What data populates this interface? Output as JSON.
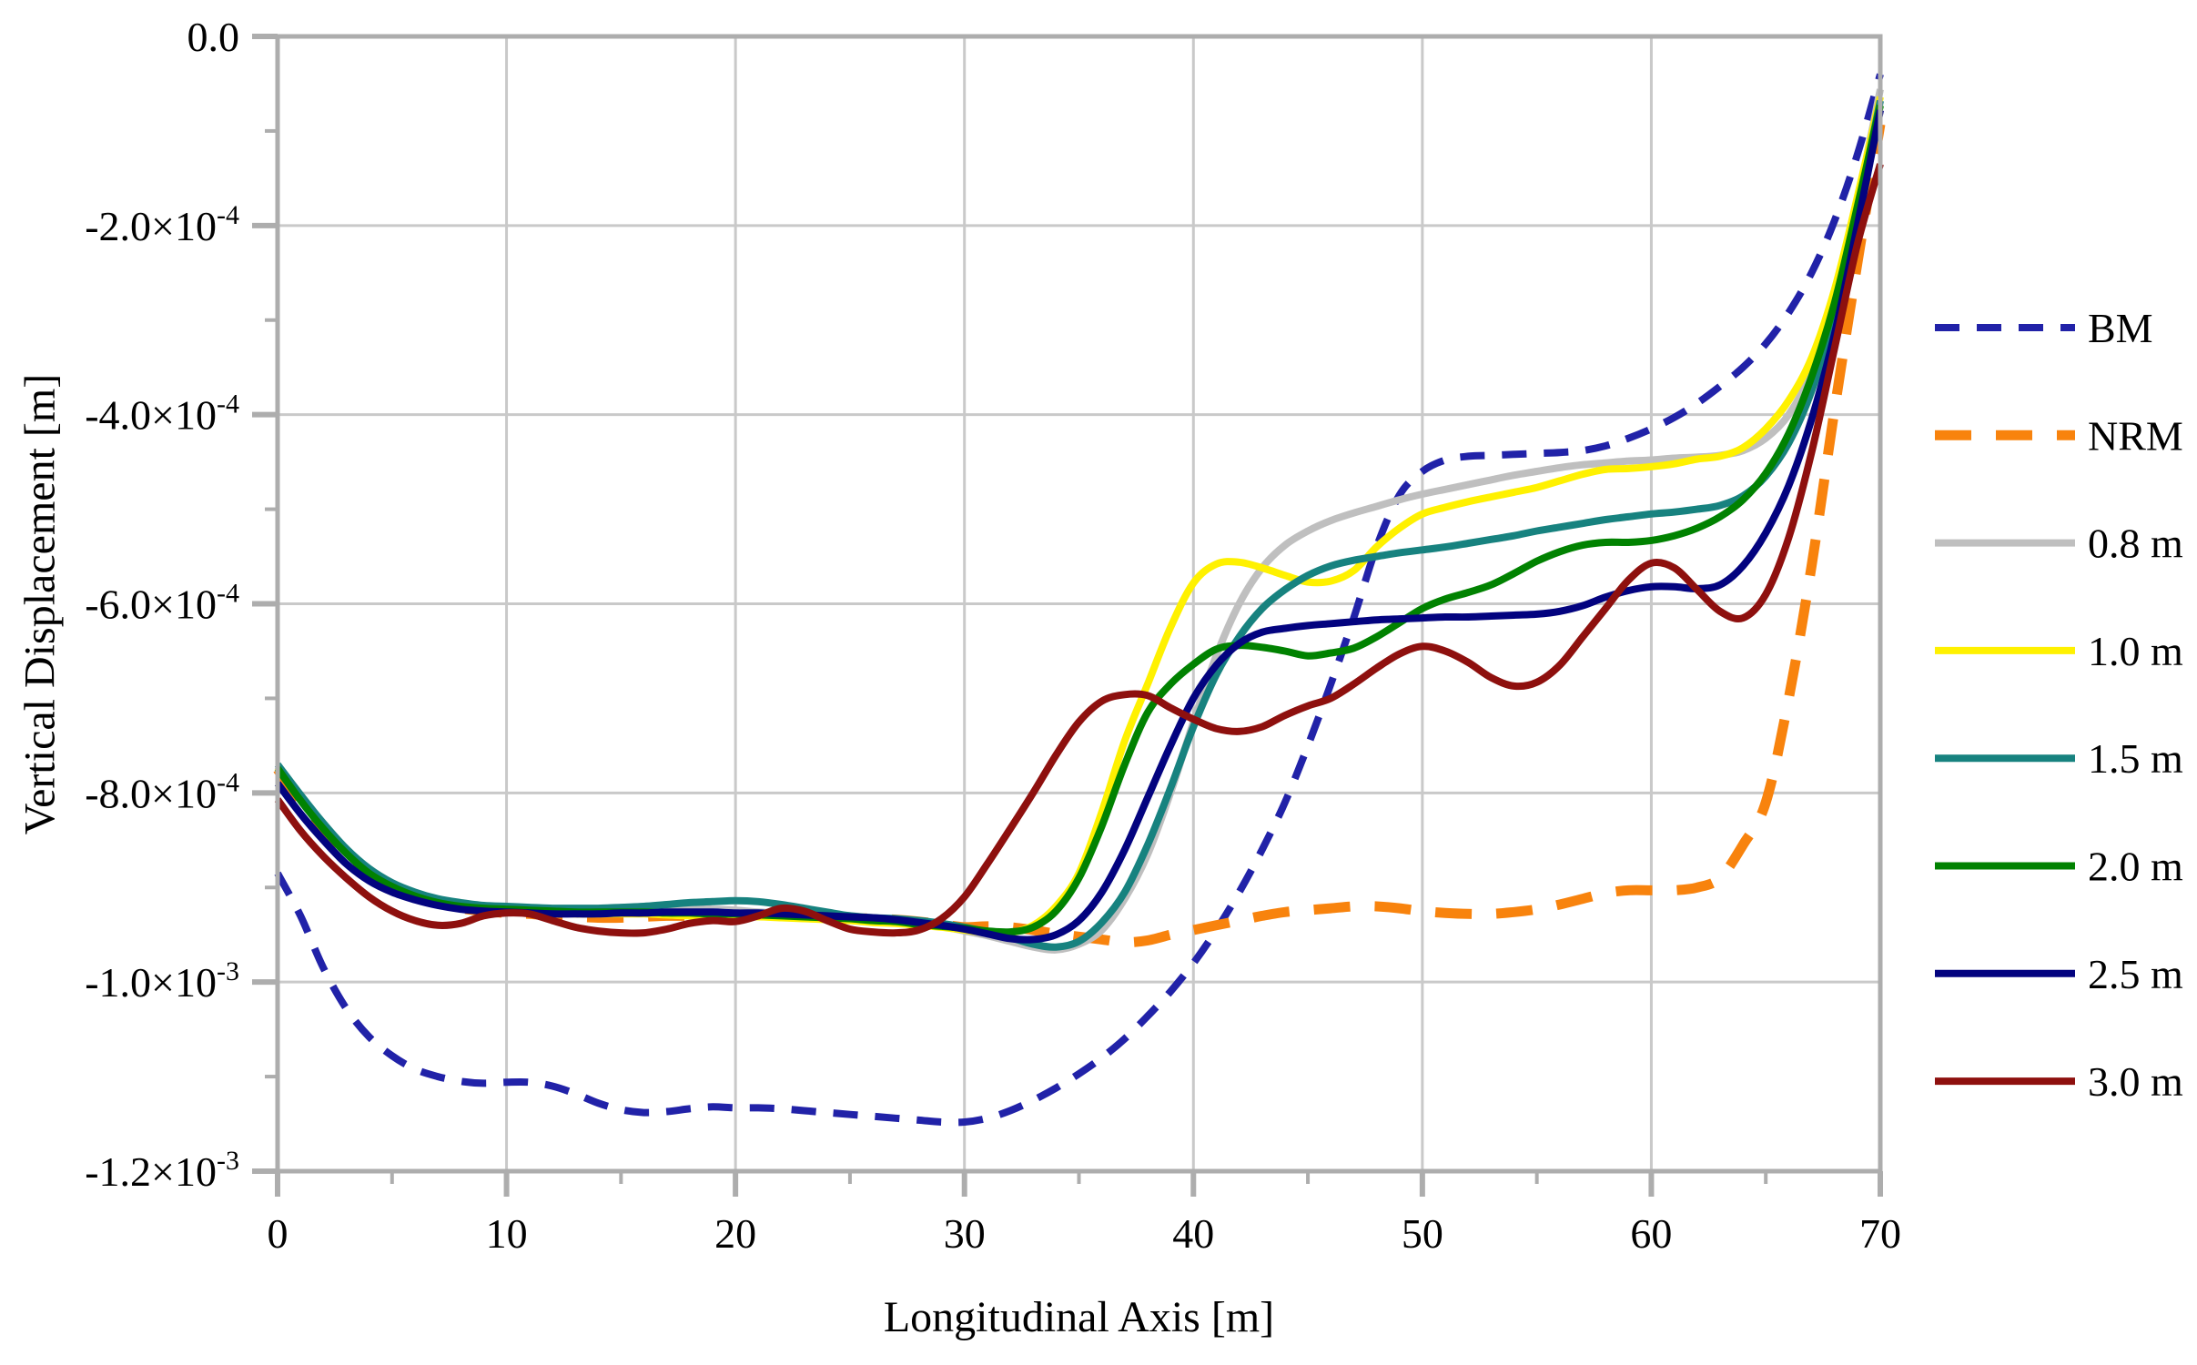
{
  "chart_data": {
    "type": "line",
    "title": "",
    "xlabel": "Longitudinal Axis [m]",
    "ylabel": "Vertical Displacement [m]",
    "grid": true,
    "legend_position": "right-outside",
    "background": "#FFFFFF",
    "axis_colors": {
      "frame": "#ADADAD",
      "grid": "#C9C9C9",
      "text": "#000000"
    },
    "x_range": [
      0,
      70
    ],
    "x_major_ticks": [
      0,
      10,
      20,
      30,
      40,
      50,
      60,
      70
    ],
    "x_minor_ticks": [
      5,
      15,
      25,
      35,
      45,
      55,
      65
    ],
    "value_unit": "1e-4 m",
    "y_range_e4": [
      -12,
      0
    ],
    "y_minor_ticks_e4": [
      -1,
      -3,
      -5,
      -7,
      -9,
      -11
    ],
    "y_ticks": [
      {
        "v": 0,
        "label": "0.0",
        "exp": null
      },
      {
        "v": -2,
        "label": "-2.0×10",
        "exp": "-4"
      },
      {
        "v": -4,
        "label": "-4.0×10",
        "exp": "-4"
      },
      {
        "v": -6,
        "label": "-6.0×10",
        "exp": "-4"
      },
      {
        "v": -8,
        "label": "-8.0×10",
        "exp": "-4"
      },
      {
        "v": -10,
        "label": "-1.0×10",
        "exp": "-3"
      },
      {
        "v": -12,
        "label": "-1.2×10",
        "exp": "-3"
      }
    ],
    "x_start": 0,
    "x_step": 1,
    "series": [
      {
        "name": "BM",
        "color": "#2122A8",
        "style": "dashed",
        "dash": [
          27,
          19
        ],
        "width": 8,
        "values_e4": [
          -8.85,
          -9.3,
          -9.85,
          -10.28,
          -10.58,
          -10.78,
          -10.92,
          -11.0,
          -11.05,
          -11.07,
          -11.06,
          -11.06,
          -11.1,
          -11.18,
          -11.28,
          -11.35,
          -11.38,
          -11.37,
          -11.34,
          -11.32,
          -11.33,
          -11.33,
          -11.34,
          -11.36,
          -11.38,
          -11.4,
          -11.42,
          -11.44,
          -11.46,
          -11.48,
          -11.48,
          -11.44,
          -11.36,
          -11.25,
          -11.12,
          -10.97,
          -10.8,
          -10.6,
          -10.36,
          -10.1,
          -9.8,
          -9.45,
          -9.05,
          -8.6,
          -8.1,
          -7.5,
          -6.85,
          -6.15,
          -5.4,
          -4.85,
          -4.6,
          -4.48,
          -4.44,
          -4.43,
          -4.42,
          -4.41,
          -4.4,
          -4.38,
          -4.33,
          -4.25,
          -4.15,
          -4.03,
          -3.88,
          -3.7,
          -3.5,
          -3.25,
          -2.92,
          -2.5,
          -1.95,
          -1.25,
          -0.4
        ]
      },
      {
        "name": "NRM",
        "color": "#F8830D",
        "style": "dashed",
        "dash": [
          40,
          27
        ],
        "width": 11,
        "values_e4": [
          -7.75,
          -8.1,
          -8.42,
          -8.68,
          -8.88,
          -9.0,
          -9.1,
          -9.17,
          -9.22,
          -9.25,
          -9.27,
          -9.28,
          -9.3,
          -9.31,
          -9.32,
          -9.32,
          -9.31,
          -9.3,
          -9.3,
          -9.3,
          -9.3,
          -9.28,
          -9.27,
          -9.28,
          -9.3,
          -9.32,
          -9.33,
          -9.34,
          -9.36,
          -9.39,
          -9.42,
          -9.41,
          -9.42,
          -9.45,
          -9.49,
          -9.52,
          -9.55,
          -9.58,
          -9.56,
          -9.5,
          -9.45,
          -9.4,
          -9.35,
          -9.3,
          -9.26,
          -9.24,
          -9.22,
          -9.2,
          -9.2,
          -9.22,
          -9.25,
          -9.27,
          -9.28,
          -9.28,
          -9.26,
          -9.23,
          -9.18,
          -9.12,
          -9.06,
          -9.03,
          -9.03,
          -9.03,
          -9.0,
          -8.9,
          -8.55,
          -8.1,
          -7.0,
          -5.6,
          -3.95,
          -2.4,
          -0.93
        ]
      },
      {
        "name": "0.8 m",
        "color": "#BFBFBF",
        "style": "solid",
        "dash": null,
        "width": 8,
        "values_e4": [
          -7.72,
          -8.05,
          -8.35,
          -8.62,
          -8.83,
          -8.97,
          -9.07,
          -9.14,
          -9.19,
          -9.22,
          -9.24,
          -9.26,
          -9.27,
          -9.27,
          -9.27,
          -9.26,
          -9.25,
          -9.23,
          -9.22,
          -9.23,
          -9.24,
          -9.26,
          -9.27,
          -9.28,
          -9.29,
          -9.3,
          -9.32,
          -9.34,
          -9.37,
          -9.41,
          -9.46,
          -9.51,
          -9.57,
          -9.63,
          -9.66,
          -9.6,
          -9.45,
          -9.12,
          -8.65,
          -8.0,
          -7.25,
          -6.55,
          -6.0,
          -5.62,
          -5.38,
          -5.23,
          -5.12,
          -5.04,
          -4.97,
          -4.9,
          -4.84,
          -4.79,
          -4.74,
          -4.69,
          -4.64,
          -4.6,
          -4.56,
          -4.53,
          -4.51,
          -4.49,
          -4.48,
          -4.46,
          -4.45,
          -4.43,
          -4.38,
          -4.25,
          -4.0,
          -3.55,
          -2.8,
          -1.75,
          -0.56
        ]
      },
      {
        "name": "1.0 m",
        "color": "#FFF100",
        "style": "solid",
        "dash": null,
        "width": 8,
        "values_e4": [
          -7.73,
          -8.07,
          -8.37,
          -8.63,
          -8.84,
          -8.98,
          -9.08,
          -9.15,
          -9.2,
          -9.23,
          -9.25,
          -9.26,
          -9.27,
          -9.28,
          -9.28,
          -9.28,
          -9.28,
          -9.29,
          -9.3,
          -9.3,
          -9.31,
          -9.31,
          -9.32,
          -9.33,
          -9.34,
          -9.35,
          -9.37,
          -9.38,
          -9.4,
          -9.42,
          -9.45,
          -9.48,
          -9.48,
          -9.4,
          -9.2,
          -8.85,
          -8.2,
          -7.45,
          -6.85,
          -6.25,
          -5.78,
          -5.58,
          -5.56,
          -5.62,
          -5.7,
          -5.77,
          -5.76,
          -5.65,
          -5.4,
          -5.2,
          -5.05,
          -4.98,
          -4.92,
          -4.87,
          -4.82,
          -4.77,
          -4.7,
          -4.63,
          -4.58,
          -4.57,
          -4.55,
          -4.52,
          -4.47,
          -4.44,
          -4.35,
          -4.15,
          -3.85,
          -3.4,
          -2.68,
          -1.7,
          -0.64
        ]
      },
      {
        "name": "1.5 m",
        "color": "#17827F",
        "style": "solid",
        "dash": null,
        "width": 8,
        "values_e4": [
          -7.7,
          -8.02,
          -8.32,
          -8.59,
          -8.8,
          -8.95,
          -9.05,
          -9.12,
          -9.16,
          -9.19,
          -9.2,
          -9.21,
          -9.22,
          -9.22,
          -9.22,
          -9.21,
          -9.2,
          -9.18,
          -9.16,
          -9.15,
          -9.14,
          -9.15,
          -9.18,
          -9.22,
          -9.26,
          -9.3,
          -9.32,
          -9.33,
          -9.35,
          -9.38,
          -9.42,
          -9.47,
          -9.53,
          -9.6,
          -9.63,
          -9.57,
          -9.37,
          -9.05,
          -8.55,
          -7.95,
          -7.3,
          -6.75,
          -6.35,
          -6.05,
          -5.85,
          -5.7,
          -5.6,
          -5.54,
          -5.5,
          -5.46,
          -5.43,
          -5.4,
          -5.36,
          -5.32,
          -5.28,
          -5.23,
          -5.19,
          -5.15,
          -5.11,
          -5.08,
          -5.05,
          -5.03,
          -5.0,
          -4.96,
          -4.86,
          -4.65,
          -4.3,
          -3.75,
          -2.95,
          -1.85,
          -0.68
        ]
      },
      {
        "name": "2.0 m",
        "color": "#018201",
        "style": "solid",
        "dash": null,
        "width": 8,
        "values_e4": [
          -7.74,
          -8.08,
          -8.38,
          -8.64,
          -8.85,
          -8.99,
          -9.09,
          -9.16,
          -9.2,
          -9.22,
          -9.23,
          -9.24,
          -9.25,
          -9.26,
          -9.26,
          -9.26,
          -9.26,
          -9.27,
          -9.27,
          -9.28,
          -9.28,
          -9.29,
          -9.3,
          -9.31,
          -9.32,
          -9.33,
          -9.35,
          -9.36,
          -9.39,
          -9.41,
          -9.43,
          -9.46,
          -9.47,
          -9.42,
          -9.25,
          -8.9,
          -8.35,
          -7.7,
          -7.15,
          -6.85,
          -6.64,
          -6.48,
          -6.44,
          -6.46,
          -6.5,
          -6.55,
          -6.52,
          -6.47,
          -6.35,
          -6.2,
          -6.05,
          -5.95,
          -5.88,
          -5.8,
          -5.68,
          -5.55,
          -5.45,
          -5.38,
          -5.35,
          -5.35,
          -5.33,
          -5.28,
          -5.2,
          -5.08,
          -4.9,
          -4.62,
          -4.2,
          -3.6,
          -2.82,
          -1.8,
          -0.73
        ]
      },
      {
        "name": "2.5 m",
        "color": "#03037F",
        "style": "solid",
        "dash": null,
        "width": 8,
        "values_e4": [
          -7.9,
          -8.22,
          -8.5,
          -8.75,
          -8.93,
          -9.05,
          -9.13,
          -9.19,
          -9.23,
          -9.25,
          -9.26,
          -9.27,
          -9.28,
          -9.28,
          -9.28,
          -9.27,
          -9.27,
          -9.26,
          -9.26,
          -9.26,
          -9.27,
          -9.27,
          -9.28,
          -9.29,
          -9.3,
          -9.31,
          -9.32,
          -9.34,
          -9.37,
          -9.4,
          -9.44,
          -9.49,
          -9.54,
          -9.55,
          -9.5,
          -9.35,
          -9.05,
          -8.6,
          -8.05,
          -7.5,
          -7.0,
          -6.65,
          -6.42,
          -6.3,
          -6.26,
          -6.23,
          -6.21,
          -6.19,
          -6.17,
          -6.16,
          -6.15,
          -6.14,
          -6.14,
          -6.13,
          -6.12,
          -6.11,
          -6.08,
          -6.02,
          -5.93,
          -5.86,
          -5.82,
          -5.82,
          -5.84,
          -5.8,
          -5.6,
          -5.25,
          -4.75,
          -4.05,
          -3.15,
          -2.0,
          -0.78
        ]
      },
      {
        "name": "3.0 m",
        "color": "#8E100E",
        "style": "solid",
        "dash": null,
        "width": 8,
        "values_e4": [
          -8.07,
          -8.4,
          -8.67,
          -8.9,
          -9.1,
          -9.25,
          -9.35,
          -9.4,
          -9.38,
          -9.3,
          -9.27,
          -9.28,
          -9.35,
          -9.42,
          -9.46,
          -9.48,
          -9.48,
          -9.44,
          -9.38,
          -9.35,
          -9.36,
          -9.3,
          -9.22,
          -9.25,
          -9.35,
          -9.44,
          -9.47,
          -9.48,
          -9.45,
          -9.33,
          -9.1,
          -8.75,
          -8.38,
          -8.0,
          -7.6,
          -7.25,
          -7.03,
          -6.96,
          -6.97,
          -7.1,
          -7.22,
          -7.32,
          -7.35,
          -7.3,
          -7.18,
          -7.08,
          -7.0,
          -6.85,
          -6.68,
          -6.53,
          -6.45,
          -6.5,
          -6.62,
          -6.78,
          -6.87,
          -6.83,
          -6.65,
          -6.35,
          -6.05,
          -5.75,
          -5.57,
          -5.62,
          -5.85,
          -6.08,
          -6.15,
          -5.9,
          -5.3,
          -4.4,
          -3.3,
          -2.2,
          -1.35
        ]
      }
    ]
  }
}
